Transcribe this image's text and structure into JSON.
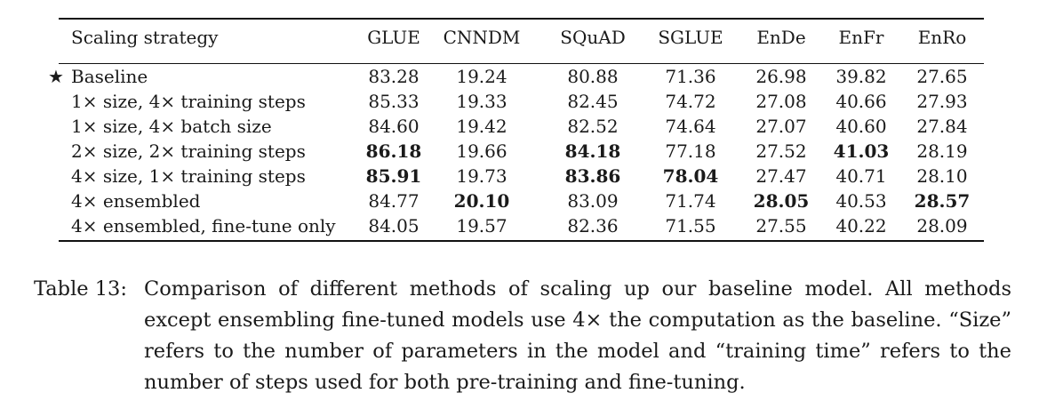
{
  "table": {
    "columns": [
      "Scaling strategy",
      "GLUE",
      "CNNDM",
      "SQuAD",
      "SGLUE",
      "EnDe",
      "EnFr",
      "EnRo"
    ],
    "baseline_marker": "★",
    "rows": [
      {
        "name": "Baseline",
        "baseline": true,
        "values": [
          "83.28",
          "19.24",
          "80.88",
          "71.36",
          "26.98",
          "39.82",
          "27.65"
        ],
        "bold": [
          false,
          false,
          false,
          false,
          false,
          false,
          false
        ]
      },
      {
        "name": "1× size, 4× training steps",
        "baseline": false,
        "values": [
          "85.33",
          "19.33",
          "82.45",
          "74.72",
          "27.08",
          "40.66",
          "27.93"
        ],
        "bold": [
          false,
          false,
          false,
          false,
          false,
          false,
          false
        ]
      },
      {
        "name": "1× size, 4× batch size",
        "baseline": false,
        "values": [
          "84.60",
          "19.42",
          "82.52",
          "74.64",
          "27.07",
          "40.60",
          "27.84"
        ],
        "bold": [
          false,
          false,
          false,
          false,
          false,
          false,
          false
        ]
      },
      {
        "name": "2× size, 2× training steps",
        "baseline": false,
        "values": [
          "86.18",
          "19.66",
          "84.18",
          "77.18",
          "27.52",
          "41.03",
          "28.19"
        ],
        "bold": [
          true,
          false,
          true,
          false,
          false,
          true,
          false
        ]
      },
      {
        "name": "4× size, 1× training steps",
        "baseline": false,
        "values": [
          "85.91",
          "19.73",
          "83.86",
          "78.04",
          "27.47",
          "40.71",
          "28.10"
        ],
        "bold": [
          true,
          false,
          true,
          true,
          false,
          false,
          false
        ]
      },
      {
        "name": "4× ensembled",
        "baseline": false,
        "values": [
          "84.77",
          "20.10",
          "83.09",
          "71.74",
          "28.05",
          "40.53",
          "28.57"
        ],
        "bold": [
          false,
          true,
          false,
          false,
          true,
          false,
          true
        ]
      },
      {
        "name": "4× ensembled, fine-tune only",
        "baseline": false,
        "values": [
          "84.05",
          "19.57",
          "82.36",
          "71.55",
          "27.55",
          "40.22",
          "28.09"
        ],
        "bold": [
          false,
          false,
          false,
          false,
          false,
          false,
          false
        ]
      }
    ]
  },
  "caption": {
    "label": "Table 13:",
    "text": "Comparison of different methods of scaling up our baseline model. All methods except ensembling fine-tuned models use 4× the computation as the baseline. “Size” refers to the number of parameters in the model and “training time” refers to the number of steps used for both pre-training and fine-tuning."
  }
}
